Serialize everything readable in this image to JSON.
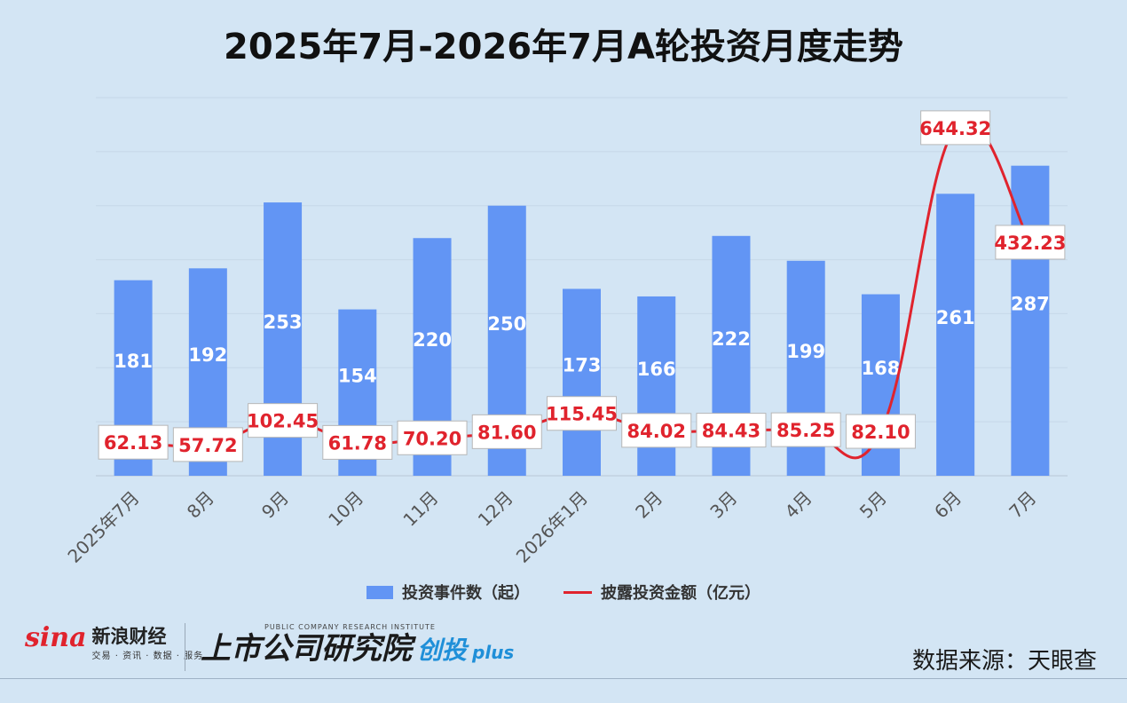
{
  "title": "2025年7月-2026年7月A轮投资月度走势",
  "legend": {
    "bars": "投资事件数（起）",
    "line": "披露投资金额（亿元）"
  },
  "footer": {
    "sina_mark": "sina",
    "sina_name": "新浪财经",
    "sina_sub": "交易 · 资讯 · 数据 · 服务",
    "inst_en": "PUBLIC COMPANY RESEARCH INSTITUTE",
    "inst_cn": "上市公司研究院",
    "inst_cn2": "创投",
    "inst_plus": "plus",
    "source": "数据来源：天眼查"
  },
  "colors": {
    "bar": "#6295f4",
    "line": "#e0232d",
    "background": "#d3e5f4"
  },
  "chart_data": {
    "type": "bar",
    "categories": [
      "2025年7月",
      "8月",
      "9月",
      "10月",
      "11月",
      "12月",
      "2026年1月",
      "2月",
      "3月",
      "4月",
      "5月",
      "6月",
      "7月"
    ],
    "series": [
      {
        "name": "投资事件数（起）",
        "type": "bar",
        "values": [
          181,
          192,
          253,
          154,
          220,
          250,
          173,
          166,
          222,
          199,
          168,
          261,
          287
        ]
      },
      {
        "name": "披露投资金额（亿元）",
        "type": "line",
        "values": [
          62.13,
          57.72,
          102.45,
          61.78,
          70.2,
          81.6,
          115.45,
          84.02,
          84.43,
          85.25,
          82.1,
          644.32,
          432.23
        ]
      }
    ],
    "value_labels": {
      "bars": [
        "181",
        "192",
        "253",
        "154",
        "220",
        "250",
        "173",
        "166",
        "222",
        "199",
        "168",
        "261",
        "287"
      ],
      "line": [
        "62.13",
        "57.72",
        "102.45",
        "61.78",
        "70.20",
        "81.60",
        "115.45",
        "84.02",
        "84.43",
        "85.25",
        "82.10",
        "644.32",
        "432.23"
      ]
    },
    "bar_axis_range": [
      0,
      350
    ],
    "line_axis_range": [
      0,
      700
    ],
    "grid": true,
    "legend_position": "bottom"
  }
}
